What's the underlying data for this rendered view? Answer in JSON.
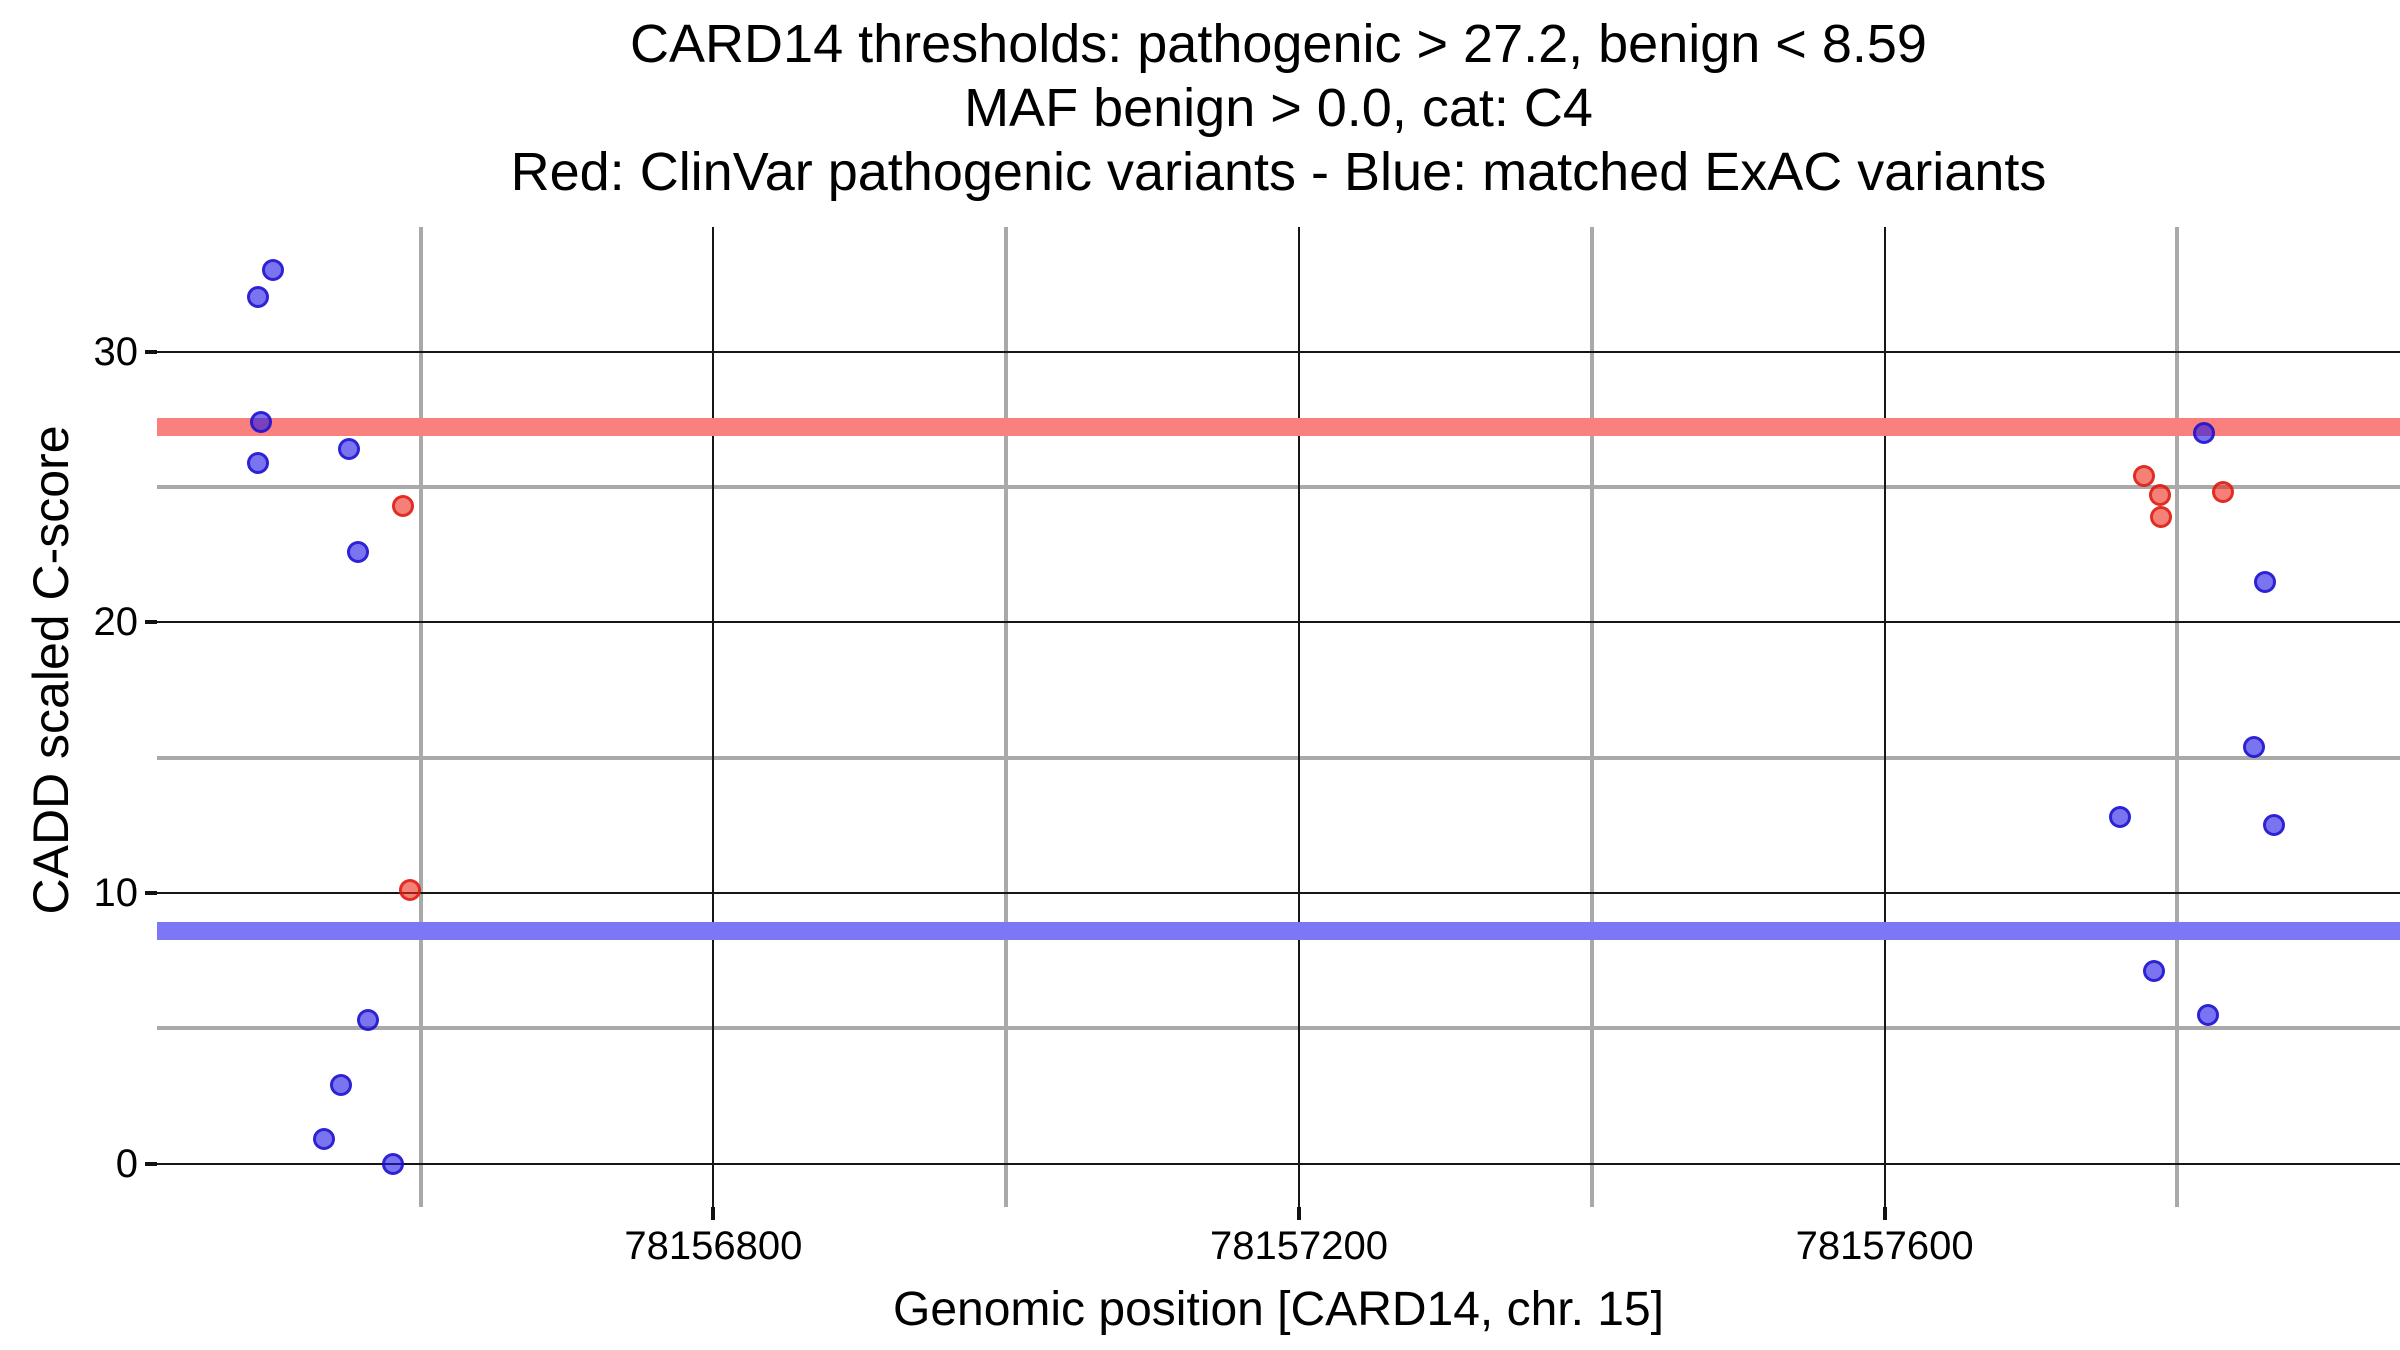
{
  "title": {
    "line1": "CARD14 thresholds: pathogenic > 27.2, benign < 8.59",
    "line2": "MAF benign > 0.0, cat: C4",
    "line3": "Red: ClinVar pathogenic variants - Blue: matched ExAC variants"
  },
  "axes": {
    "x_title": "Genomic position [CARD14, chr. 15]",
    "y_title": "CADD scaled C-score"
  },
  "chart_data": {
    "type": "scatter",
    "title": "CARD14 thresholds: pathogenic > 27.2, benign < 8.59",
    "subtitle": "MAF benign > 0.0, cat: C4",
    "legend_note": "Red: ClinVar pathogenic variants - Blue: matched ExAC variants",
    "xlabel": "Genomic position [CARD14, chr. 15]",
    "ylabel": "CADD scaled C-score",
    "xlim": [
      78156420,
      78157952
    ],
    "ylim": [
      -1.6,
      34.6
    ],
    "x_major_ticks": [
      78156800,
      78157200,
      78157600
    ],
    "x_major_tick_labels": [
      "78156800",
      "78157200",
      "78157600"
    ],
    "x_minor_gridlines": [
      78156600,
      78157000,
      78157400,
      78157800
    ],
    "y_major_ticks": [
      0,
      10,
      20,
      30
    ],
    "y_major_tick_labels": [
      "0",
      "10",
      "20",
      "30"
    ],
    "y_minor_gridlines": [
      5,
      15,
      25
    ],
    "grid": "on",
    "legend_position": "none",
    "thresholds": [
      {
        "name": "pathogenic-threshold",
        "value": 27.2,
        "color": "#f9807c"
      },
      {
        "name": "benign-threshold",
        "value": 8.59,
        "color": "#7c77f5"
      }
    ],
    "series": [
      {
        "name": "ClinVar pathogenic variants",
        "color": "#e53a2e",
        "fill": "rgba(239,43,30,0.6)",
        "stroke": "rgba(220,25,15,0.8)",
        "points": [
          [
            78156588,
            24.3
          ],
          [
            78156593,
            10.1
          ],
          [
            78157777,
            25.4
          ],
          [
            78157788,
            24.7
          ],
          [
            78157831,
            24.8
          ],
          [
            78157789,
            23.9
          ]
        ]
      },
      {
        "name": "matched ExAC variants",
        "color": "#4338e9",
        "fill": "rgba(35,23,230,0.6)",
        "stroke": "rgba(28,16,205,0.8)",
        "points": [
          [
            78156499,
            33.0
          ],
          [
            78156489,
            32.0
          ],
          [
            78156491,
            27.4
          ],
          [
            78156551,
            26.4
          ],
          [
            78156489,
            25.9
          ],
          [
            78156557,
            22.6
          ],
          [
            78156564,
            5.3
          ],
          [
            78156546,
            2.9
          ],
          [
            78156534,
            0.9
          ],
          [
            78156581,
            0.0
          ],
          [
            78157818,
            27.0
          ],
          [
            78157860,
            21.5
          ],
          [
            78157852,
            15.4
          ],
          [
            78157761,
            12.8
          ],
          [
            78157866,
            12.5
          ],
          [
            78157784,
            7.1
          ],
          [
            78157821,
            5.5
          ]
        ]
      }
    ]
  },
  "style": {
    "grid_minor_color": "#a9a9a9",
    "grid_major_color": "#161616",
    "tick_color": "#111111",
    "text_color": "#000000",
    "background": "#ffffff"
  }
}
